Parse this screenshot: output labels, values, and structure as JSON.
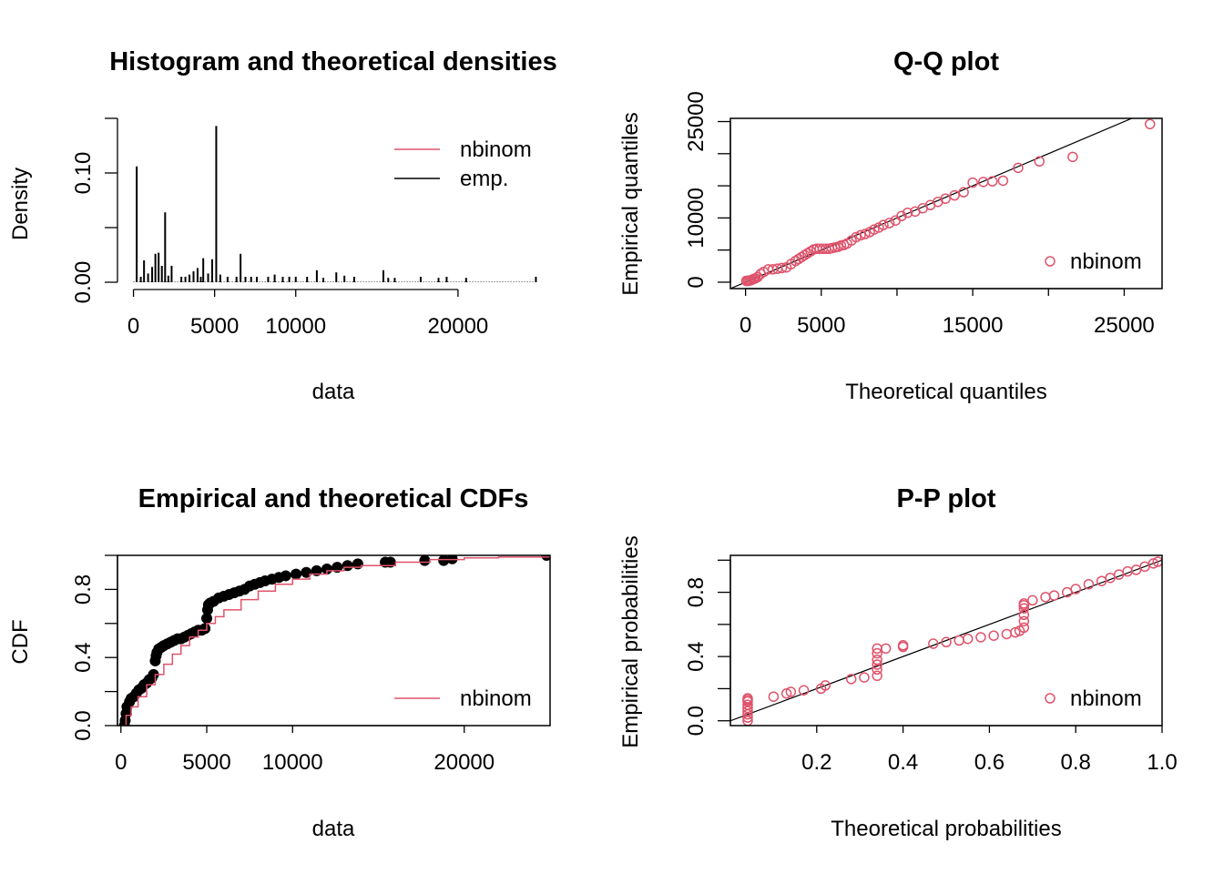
{
  "colors": {
    "theoretical": "#DF536B",
    "empirical": "#000000"
  },
  "chart_data": [
    {
      "type": "bar",
      "title": "Histogram and theoretical densities",
      "xlabel": "data",
      "ylabel": "Density",
      "xlim": [
        -200,
        25000
      ],
      "ylim": [
        0,
        0.15
      ],
      "x_ticks": [
        0,
        5000,
        10000,
        20000
      ],
      "y_ticks": [
        0,
        0.05,
        0.1,
        0.15
      ],
      "y_tick_labels": [
        "0.00",
        "",
        "0.10",
        ""
      ],
      "legend": [
        "nbinom",
        "emp."
      ],
      "legend_position": "top-right",
      "bars": {
        "x": [
          200,
          450,
          650,
          900,
          1150,
          1350,
          1550,
          1750,
          1950,
          2150,
          2350,
          2950,
          3200,
          3450,
          3700,
          3950,
          4150,
          4300,
          4600,
          4850,
          5100,
          5350,
          5800,
          6350,
          6600,
          6900,
          7250,
          7600,
          8300,
          8700,
          9200,
          9600,
          10000,
          10700,
          11300,
          11700,
          12500,
          13000,
          13600,
          15400,
          15700,
          16100,
          17700,
          18800,
          19300,
          20500,
          24800
        ],
        "density": [
          0.106,
          0.005,
          0.02,
          0.008,
          0.014,
          0.026,
          0.027,
          0.015,
          0.064,
          0.006,
          0.015,
          0.005,
          0.005,
          0.007,
          0.01,
          0.013,
          0.005,
          0.022,
          0.008,
          0.021,
          0.143,
          0.007,
          0.005,
          0.005,
          0.026,
          0.005,
          0.005,
          0.005,
          0.005,
          0.007,
          0.005,
          0.005,
          0.005,
          0.005,
          0.011,
          0.004,
          0.009,
          0.006,
          0.005,
          0.011,
          0.004,
          0.004,
          0.005,
          0.004,
          0.005,
          0.004,
          0.005
        ]
      },
      "theoretical_density_max": 0.0005
    },
    {
      "type": "scatter",
      "title": "Q-Q plot",
      "xlabel": "Theoretical quantiles",
      "ylabel": "Empirical quantiles",
      "xlim": [
        -1000,
        27500
      ],
      "ylim": [
        -1000,
        25500
      ],
      "x_ticks": [
        0,
        5000,
        10000,
        15000,
        20000,
        25000
      ],
      "x_tick_labels": [
        "0",
        "5000",
        "",
        "15000",
        "",
        "25000"
      ],
      "y_ticks": [
        0,
        5000,
        10000,
        15000,
        20000,
        25000
      ],
      "y_tick_labels": [
        "0",
        "",
        "10000",
        "",
        "",
        "25000"
      ],
      "legend": [
        "nbinom"
      ],
      "legend_position": "bottom-right",
      "reference_line": "y = x",
      "points": {
        "x": [
          50,
          150,
          250,
          350,
          450,
          550,
          650,
          800,
          1000,
          1200,
          1500,
          1800,
          2100,
          2400,
          2700,
          3000,
          3300,
          3500,
          3700,
          3900,
          4100,
          4300,
          4500,
          4700,
          4900,
          5100,
          5300,
          5500,
          5700,
          5900,
          6100,
          6300,
          6500,
          6700,
          7000,
          7300,
          7600,
          7900,
          8200,
          8500,
          8800,
          9100,
          9500,
          9900,
          10300,
          10700,
          11200,
          11700,
          12200,
          12700,
          13200,
          13800,
          14400,
          15000,
          15700,
          16300,
          17000,
          18000,
          19400,
          21600,
          26700
        ],
        "y": [
          200,
          200,
          250,
          300,
          400,
          500,
          600,
          800,
          1300,
          1600,
          2000,
          2000,
          2100,
          2200,
          2300,
          2800,
          3300,
          3600,
          3900,
          4200,
          4500,
          4800,
          5100,
          5200,
          5200,
          5200,
          5200,
          5200,
          5300,
          5400,
          5500,
          5700,
          5800,
          6000,
          6500,
          7000,
          7300,
          7500,
          7800,
          8200,
          8500,
          8900,
          9200,
          9600,
          10300,
          10800,
          11000,
          11500,
          12000,
          12500,
          13000,
          13500,
          14000,
          15500,
          15600,
          15700,
          15800,
          17800,
          18800,
          19500,
          24600
        ]
      }
    },
    {
      "type": "line",
      "title": "Empirical and theoretical CDFs",
      "xlabel": "data",
      "ylabel": "CDF",
      "xlim": [
        -200,
        25000
      ],
      "ylim": [
        0,
        1.0
      ],
      "x_ticks": [
        0,
        5000,
        10000,
        20000
      ],
      "y_ticks": [
        0,
        0.2,
        0.4,
        0.6,
        0.8,
        1.0
      ],
      "y_tick_labels": [
        "0.0",
        "",
        "0.4",
        "",
        "0.8",
        ""
      ],
      "legend": [
        "nbinom"
      ],
      "legend_position": "bottom-right",
      "empirical_points": {
        "x": [
          200,
          250,
          300,
          350,
          500,
          600,
          750,
          900,
          1050,
          1200,
          1350,
          1500,
          1650,
          1800,
          1900,
          2000,
          2050,
          2100,
          2200,
          2350,
          2500,
          2700,
          2900,
          3100,
          3300,
          3500,
          3700,
          3900,
          4100,
          4300,
          4500,
          4700,
          4900,
          5000,
          5050,
          5100,
          5200,
          5400,
          5700,
          6000,
          6300,
          6600,
          6900,
          7200,
          7500,
          7800,
          8100,
          8400,
          8800,
          9200,
          9600,
          10200,
          10800,
          11400,
          12000,
          12600,
          13200,
          13800,
          15400,
          15700,
          17700,
          18800,
          19300,
          24800
        ],
        "y": [
          0.0,
          0.03,
          0.07,
          0.11,
          0.14,
          0.16,
          0.17,
          0.19,
          0.21,
          0.22,
          0.24,
          0.25,
          0.27,
          0.28,
          0.3,
          0.38,
          0.41,
          0.43,
          0.45,
          0.46,
          0.47,
          0.48,
          0.49,
          0.5,
          0.51,
          0.51,
          0.52,
          0.53,
          0.54,
          0.55,
          0.56,
          0.56,
          0.57,
          0.63,
          0.68,
          0.71,
          0.72,
          0.73,
          0.75,
          0.76,
          0.77,
          0.78,
          0.79,
          0.8,
          0.82,
          0.83,
          0.84,
          0.85,
          0.86,
          0.87,
          0.88,
          0.89,
          0.9,
          0.91,
          0.92,
          0.93,
          0.94,
          0.95,
          0.96,
          0.96,
          0.97,
          0.97,
          0.98,
          1.0
        ]
      },
      "theoretical_cdf": {
        "x": [
          0,
          300,
          600,
          1000,
          1500,
          2000,
          2500,
          3000,
          3500,
          4000,
          4500,
          5000,
          5500,
          6000,
          7000,
          8000,
          9000,
          10000,
          11000,
          12000,
          13000,
          14000,
          16000,
          18000,
          20000,
          22000,
          25000
        ],
        "y": [
          0.0,
          0.06,
          0.11,
          0.17,
          0.24,
          0.3,
          0.36,
          0.42,
          0.47,
          0.52,
          0.56,
          0.6,
          0.64,
          0.68,
          0.74,
          0.79,
          0.83,
          0.86,
          0.89,
          0.91,
          0.93,
          0.94,
          0.96,
          0.975,
          0.985,
          0.99,
          0.995
        ]
      }
    },
    {
      "type": "scatter",
      "title": "P-P plot",
      "xlabel": "Theoretical probabilities",
      "ylabel": "Empirical probabilities",
      "xlim": [
        0.0,
        1.0
      ],
      "ylim": [
        -0.03,
        1.03
      ],
      "x_ticks": [
        0.2,
        0.4,
        0.6,
        0.8,
        1.0
      ],
      "x_tick_labels": [
        "0.2",
        "0.4",
        "0.6",
        "0.8",
        "1.0"
      ],
      "y_ticks": [
        0,
        0.2,
        0.4,
        0.6,
        0.8,
        1.0
      ],
      "y_tick_labels": [
        "0.0",
        "",
        "0.4",
        "",
        "0.8",
        ""
      ],
      "legend": [
        "nbinom"
      ],
      "legend_position": "bottom-right",
      "reference_line": "y = x",
      "points": {
        "x": [
          0.04,
          0.04,
          0.04,
          0.04,
          0.04,
          0.04,
          0.04,
          0.04,
          0.04,
          0.1,
          0.13,
          0.14,
          0.17,
          0.21,
          0.22,
          0.28,
          0.31,
          0.34,
          0.34,
          0.34,
          0.34,
          0.34,
          0.34,
          0.36,
          0.4,
          0.4,
          0.47,
          0.5,
          0.53,
          0.55,
          0.58,
          0.61,
          0.64,
          0.66,
          0.67,
          0.68,
          0.68,
          0.68,
          0.68,
          0.68,
          0.68,
          0.7,
          0.73,
          0.75,
          0.78,
          0.8,
          0.83,
          0.86,
          0.88,
          0.9,
          0.92,
          0.94,
          0.96,
          0.98,
          0.99
        ],
        "y": [
          0.0,
          0.02,
          0.04,
          0.06,
          0.08,
          0.1,
          0.12,
          0.13,
          0.14,
          0.15,
          0.17,
          0.18,
          0.19,
          0.2,
          0.22,
          0.26,
          0.27,
          0.28,
          0.32,
          0.35,
          0.38,
          0.42,
          0.45,
          0.45,
          0.46,
          0.47,
          0.48,
          0.49,
          0.5,
          0.51,
          0.52,
          0.53,
          0.54,
          0.55,
          0.56,
          0.58,
          0.62,
          0.66,
          0.7,
          0.72,
          0.73,
          0.75,
          0.77,
          0.78,
          0.8,
          0.82,
          0.85,
          0.87,
          0.89,
          0.91,
          0.93,
          0.94,
          0.96,
          0.98,
          0.99
        ]
      }
    }
  ]
}
